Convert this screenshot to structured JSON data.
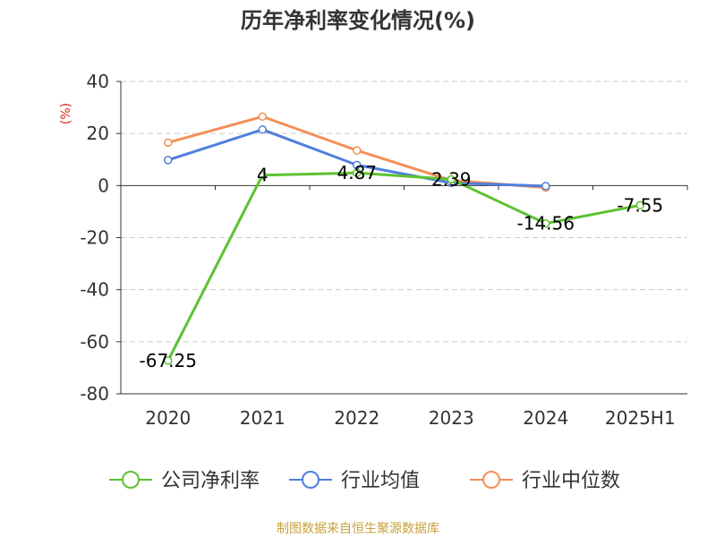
{
  "chart_data": {
    "type": "line",
    "title": "历年净利率变化情况(%)",
    "ylabel": "(%)",
    "categories": [
      "2020",
      "2021",
      "2022",
      "2023",
      "2024",
      "2025H1"
    ],
    "ylim": [
      -80,
      40
    ],
    "yticks": [
      40,
      20,
      0,
      -20,
      -40,
      -60,
      -80
    ],
    "grid": true,
    "legend_position": "bottom",
    "series": [
      {
        "name": "公司净利率",
        "color": "#5cc231",
        "values": [
          -67.25,
          4,
          4.87,
          2.39,
          -14.56,
          -7.55
        ],
        "labels": [
          "-67.25",
          "4",
          "4.87",
          "2.39",
          "-14.56",
          "-7.55"
        ]
      },
      {
        "name": "行业均值",
        "color": "#4f7fdc",
        "values": [
          9.8,
          21.5,
          7.9,
          1.0,
          -0.2,
          null
        ]
      },
      {
        "name": "行业中位数",
        "color": "#f58f57",
        "values": [
          16.5,
          26.5,
          13.5,
          2.0,
          -0.8,
          null
        ]
      }
    ]
  },
  "source": "制图数据来自恒生聚源数据库",
  "source_color": "#c8a13c"
}
